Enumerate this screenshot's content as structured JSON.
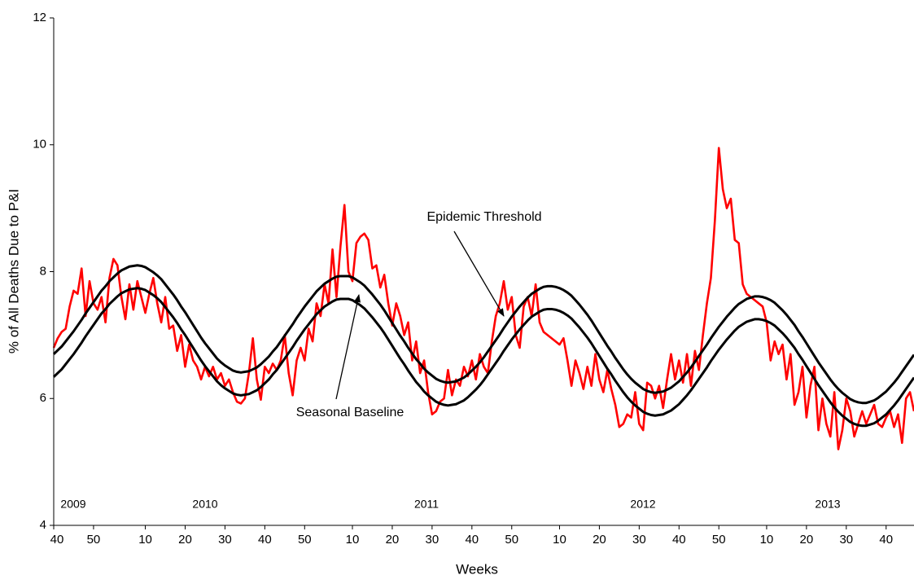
{
  "chart_data": {
    "type": "line",
    "y_label": "% of All Deaths Due to P&I",
    "x_label": "Weeks",
    "year_labels": [
      "2009",
      "2010",
      "2011",
      "2012",
      "2013"
    ],
    "ylim": [
      4,
      12
    ],
    "yticks": [
      4,
      6,
      8,
      10,
      12
    ],
    "grid": false,
    "categories": [
      "40",
      null,
      null,
      null,
      null,
      null,
      null,
      null,
      null,
      null,
      "50",
      null,
      null,
      null,
      null,
      null,
      null,
      null,
      null,
      null,
      null,
      null,
      null,
      "10",
      null,
      null,
      null,
      null,
      null,
      null,
      null,
      null,
      null,
      "20",
      null,
      null,
      null,
      null,
      null,
      null,
      null,
      null,
      null,
      "30",
      null,
      null,
      null,
      null,
      null,
      null,
      null,
      null,
      null,
      "40",
      null,
      null,
      null,
      null,
      null,
      null,
      null,
      null,
      null,
      "50",
      null,
      null,
      null,
      null,
      null,
      null,
      null,
      null,
      null,
      null,
      null,
      "10",
      null,
      null,
      null,
      null,
      null,
      null,
      null,
      null,
      null,
      "20",
      null,
      null,
      null,
      null,
      null,
      null,
      null,
      null,
      null,
      "30",
      null,
      null,
      null,
      null,
      null,
      null,
      null,
      null,
      null,
      "40",
      null,
      null,
      null,
      null,
      null,
      null,
      null,
      null,
      null,
      "50",
      null,
      null,
      null,
      null,
      null,
      null,
      null,
      null,
      null,
      null,
      null,
      "10",
      null,
      null,
      null,
      null,
      null,
      null,
      null,
      null,
      null,
      "20",
      null,
      null,
      null,
      null,
      null,
      null,
      null,
      null,
      null,
      "30",
      null,
      null,
      null,
      null,
      null,
      null,
      null,
      null,
      null,
      "40",
      null,
      null,
      null,
      null,
      null,
      null,
      null,
      null,
      null,
      "50",
      null,
      null,
      null,
      null,
      null,
      null,
      null,
      null,
      null,
      null,
      null,
      "10",
      null,
      null,
      null,
      null,
      null,
      null,
      null,
      null,
      null,
      "20",
      null,
      null,
      null,
      null,
      null,
      null,
      null,
      null,
      null,
      "30",
      null,
      null,
      null,
      null,
      null,
      null,
      null,
      null,
      null,
      "40",
      null,
      null,
      null,
      null,
      null,
      null,
      null
    ],
    "series": [
      {
        "color": "#ff0000",
        "values": [
          6.8,
          6.95,
          7.05,
          7.1,
          7.45,
          7.7,
          7.65,
          8.05,
          7.3,
          7.85,
          7.5,
          7.4,
          7.6,
          7.2,
          7.9,
          8.2,
          8.1,
          7.6,
          7.25,
          7.8,
          7.4,
          7.85,
          7.6,
          7.35,
          7.65,
          7.9,
          7.5,
          7.2,
          7.6,
          7.1,
          7.15,
          6.75,
          7.0,
          6.5,
          6.85,
          6.6,
          6.5,
          6.3,
          6.5,
          6.35,
          6.5,
          6.3,
          6.4,
          6.2,
          6.3,
          6.1,
          5.95,
          5.92,
          6.0,
          6.4,
          6.95,
          6.3,
          5.98,
          6.5,
          6.4,
          6.55,
          6.45,
          6.6,
          7.0,
          6.4,
          6.05,
          6.6,
          6.8,
          6.6,
          7.1,
          6.9,
          7.5,
          7.3,
          7.8,
          7.5,
          8.35,
          7.6,
          8.4,
          9.05,
          8.0,
          7.85,
          8.45,
          8.55,
          8.6,
          8.5,
          8.05,
          8.1,
          7.75,
          7.95,
          7.5,
          7.15,
          7.5,
          7.3,
          7.0,
          7.2,
          6.6,
          6.9,
          6.4,
          6.6,
          6.1,
          5.75,
          5.8,
          5.95,
          6.0,
          6.45,
          6.05,
          6.3,
          6.2,
          6.5,
          6.35,
          6.6,
          6.3,
          6.7,
          6.5,
          6.4,
          6.9,
          7.3,
          7.5,
          7.85,
          7.4,
          7.6,
          7.0,
          6.8,
          7.45,
          7.6,
          7.3,
          7.8,
          7.2,
          7.05,
          7.0,
          6.95,
          6.9,
          6.85,
          6.95,
          6.6,
          6.2,
          6.6,
          6.4,
          6.15,
          6.5,
          6.2,
          6.7,
          6.3,
          6.1,
          6.45,
          6.15,
          5.9,
          5.55,
          5.6,
          5.75,
          5.7,
          6.1,
          5.6,
          5.5,
          6.25,
          6.2,
          6.0,
          6.2,
          5.85,
          6.3,
          6.7,
          6.3,
          6.6,
          6.25,
          6.7,
          6.2,
          6.75,
          6.45,
          7.0,
          7.5,
          7.9,
          8.8,
          9.95,
          9.3,
          9.0,
          9.15,
          8.5,
          8.45,
          7.8,
          7.65,
          7.6,
          7.55,
          7.5,
          7.45,
          7.2,
          6.6,
          6.9,
          6.7,
          6.85,
          6.3,
          6.7,
          5.9,
          6.1,
          6.5,
          5.7,
          6.2,
          6.5,
          5.5,
          6.0,
          5.6,
          5.4,
          6.1,
          5.2,
          5.5,
          6.0,
          5.8,
          5.4,
          5.6,
          5.8,
          5.6,
          5.75,
          5.9,
          5.6,
          5.55,
          5.7,
          5.8,
          5.55,
          5.75,
          5.3,
          6.0,
          6.1,
          5.8
        ]
      },
      {
        "name": "Epidemic Threshold",
        "color": "#000000",
        "values": [
          6.7,
          6.76,
          6.82,
          6.9,
          6.98,
          7.06,
          7.15,
          7.24,
          7.34,
          7.43,
          7.52,
          7.61,
          7.7,
          7.77,
          7.85,
          7.91,
          7.97,
          8.02,
          8.05,
          8.08,
          8.09,
          8.1,
          8.09,
          8.07,
          8.03,
          7.99,
          7.94,
          7.88,
          7.8,
          7.72,
          7.64,
          7.55,
          7.45,
          7.36,
          7.26,
          7.16,
          7.06,
          6.96,
          6.87,
          6.79,
          6.71,
          6.63,
          6.57,
          6.52,
          6.48,
          6.44,
          6.42,
          6.41,
          6.42,
          6.43,
          6.46,
          6.49,
          6.54,
          6.6,
          6.66,
          6.74,
          6.81,
          6.9,
          6.99,
          7.08,
          7.17,
          7.27,
          7.36,
          7.45,
          7.53,
          7.61,
          7.69,
          7.75,
          7.81,
          7.85,
          7.89,
          7.92,
          7.93,
          7.93,
          7.93,
          7.91,
          7.87,
          7.83,
          7.78,
          7.71,
          7.64,
          7.56,
          7.48,
          7.39,
          7.29,
          7.19,
          7.09,
          6.99,
          6.9,
          6.8,
          6.71,
          6.62,
          6.55,
          6.47,
          6.41,
          6.36,
          6.31,
          6.28,
          6.26,
          6.25,
          6.26,
          6.27,
          6.3,
          6.33,
          6.38,
          6.44,
          6.5,
          6.57,
          6.65,
          6.74,
          6.83,
          6.92,
          7.01,
          7.11,
          7.2,
          7.29,
          7.37,
          7.45,
          7.52,
          7.59,
          7.65,
          7.69,
          7.73,
          7.76,
          7.77,
          7.77,
          7.76,
          7.74,
          7.71,
          7.67,
          7.62,
          7.55,
          7.48,
          7.4,
          7.32,
          7.23,
          7.13,
          7.03,
          6.93,
          6.83,
          6.74,
          6.64,
          6.55,
          6.46,
          6.38,
          6.31,
          6.25,
          6.2,
          6.15,
          6.12,
          6.1,
          6.09,
          6.1,
          6.11,
          6.14,
          6.17,
          6.22,
          6.27,
          6.34,
          6.41,
          6.49,
          6.58,
          6.67,
          6.76,
          6.85,
          6.95,
          7.04,
          7.13,
          7.21,
          7.29,
          7.36,
          7.43,
          7.49,
          7.53,
          7.57,
          7.59,
          7.61,
          7.61,
          7.6,
          7.58,
          7.55,
          7.51,
          7.45,
          7.39,
          7.32,
          7.24,
          7.16,
          7.06,
          6.97,
          6.87,
          6.77,
          6.67,
          6.57,
          6.48,
          6.39,
          6.3,
          6.22,
          6.15,
          6.09,
          6.04,
          5.99,
          5.96,
          5.94,
          5.93,
          5.93,
          5.95,
          5.97,
          6.01,
          6.06,
          6.11,
          6.18,
          6.25,
          6.33,
          6.42,
          6.51,
          6.6,
          6.69
        ]
      },
      {
        "name": "Seasonal Baseline",
        "color": "#000000",
        "values": [
          6.34,
          6.4,
          6.46,
          6.54,
          6.62,
          6.7,
          6.79,
          6.88,
          6.98,
          7.07,
          7.16,
          7.25,
          7.34,
          7.41,
          7.49,
          7.55,
          7.61,
          7.66,
          7.69,
          7.72,
          7.73,
          7.74,
          7.73,
          7.71,
          7.67,
          7.63,
          7.58,
          7.52,
          7.44,
          7.36,
          7.28,
          7.19,
          7.09,
          7.0,
          6.9,
          6.8,
          6.7,
          6.6,
          6.51,
          6.43,
          6.35,
          6.27,
          6.21,
          6.16,
          6.12,
          6.08,
          6.06,
          6.05,
          6.06,
          6.07,
          6.1,
          6.13,
          6.18,
          6.24,
          6.3,
          6.38,
          6.45,
          6.54,
          6.63,
          6.72,
          6.81,
          6.91,
          7.0,
          7.09,
          7.17,
          7.25,
          7.33,
          7.39,
          7.45,
          7.49,
          7.53,
          7.56,
          7.57,
          7.57,
          7.57,
          7.55,
          7.51,
          7.47,
          7.42,
          7.35,
          7.28,
          7.2,
          7.12,
          7.03,
          6.93,
          6.83,
          6.73,
          6.63,
          6.54,
          6.44,
          6.35,
          6.26,
          6.19,
          6.11,
          6.05,
          6.0,
          5.95,
          5.92,
          5.9,
          5.89,
          5.9,
          5.91,
          5.94,
          5.97,
          6.02,
          6.08,
          6.14,
          6.21,
          6.29,
          6.38,
          6.47,
          6.56,
          6.65,
          6.75,
          6.84,
          6.93,
          7.01,
          7.09,
          7.16,
          7.23,
          7.29,
          7.33,
          7.37,
          7.4,
          7.41,
          7.41,
          7.4,
          7.38,
          7.35,
          7.31,
          7.26,
          7.19,
          7.12,
          7.04,
          6.96,
          6.87,
          6.77,
          6.67,
          6.57,
          6.47,
          6.38,
          6.28,
          6.19,
          6.1,
          6.02,
          5.95,
          5.89,
          5.84,
          5.79,
          5.76,
          5.74,
          5.73,
          5.74,
          5.75,
          5.78,
          5.81,
          5.86,
          5.91,
          5.98,
          6.05,
          6.13,
          6.22,
          6.31,
          6.4,
          6.49,
          6.59,
          6.68,
          6.77,
          6.85,
          6.93,
          7.0,
          7.07,
          7.13,
          7.17,
          7.21,
          7.23,
          7.25,
          7.25,
          7.24,
          7.22,
          7.19,
          7.15,
          7.09,
          7.03,
          6.96,
          6.88,
          6.8,
          6.7,
          6.61,
          6.51,
          6.41,
          6.31,
          6.21,
          6.12,
          6.03,
          5.94,
          5.86,
          5.79,
          5.73,
          5.68,
          5.63,
          5.6,
          5.58,
          5.57,
          5.57,
          5.59,
          5.61,
          5.65,
          5.7,
          5.75,
          5.82,
          5.89,
          5.97,
          6.06,
          6.15,
          6.24,
          6.33
        ]
      }
    ]
  }
}
